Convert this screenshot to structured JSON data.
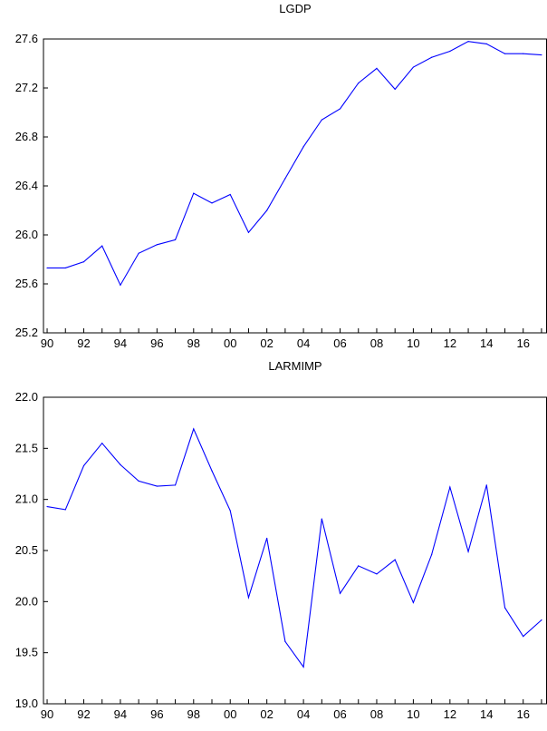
{
  "chart_data": [
    {
      "type": "line",
      "title": "LGDP",
      "xlabel": "",
      "ylabel": "",
      "color": "#0000ff",
      "grid": false,
      "x": [
        1990,
        1991,
        1992,
        1993,
        1994,
        1995,
        1996,
        1997,
        1998,
        1999,
        2000,
        2001,
        2002,
        2003,
        2004,
        2005,
        2006,
        2007,
        2008,
        2009,
        2010,
        2011,
        2012,
        2013,
        2014,
        2015,
        2016,
        2017
      ],
      "values": [
        25.73,
        25.73,
        25.78,
        25.91,
        25.59,
        25.85,
        25.92,
        25.96,
        26.34,
        26.26,
        26.33,
        26.02,
        26.2,
        26.46,
        26.72,
        26.94,
        27.03,
        27.24,
        27.36,
        27.19,
        27.37,
        27.45,
        27.5,
        27.58,
        27.56,
        27.48,
        27.48,
        27.47
      ],
      "xlim": [
        1989.8,
        2017.3
      ],
      "ylim": [
        25.2,
        27.6
      ],
      "yticks": [
        25.2,
        25.6,
        26.0,
        26.4,
        26.8,
        27.2,
        27.6
      ],
      "ytick_labels": [
        "25.2",
        "25.6",
        "26.0",
        "26.4",
        "26.8",
        "27.2",
        "27.6"
      ],
      "xtick_years": [
        1990,
        1992,
        1994,
        1996,
        1998,
        2000,
        2002,
        2004,
        2006,
        2008,
        2010,
        2012,
        2014,
        2016
      ],
      "xtick_labels": [
        "90",
        "92",
        "94",
        "96",
        "98",
        "00",
        "02",
        "04",
        "06",
        "08",
        "10",
        "12",
        "14",
        "16"
      ]
    },
    {
      "type": "line",
      "title": "LARMIMP",
      "xlabel": "",
      "ylabel": "",
      "color": "#0000ff",
      "grid": false,
      "x": [
        1990,
        1991,
        1992,
        1993,
        1994,
        1995,
        1996,
        1997,
        1998,
        1999,
        2000,
        2001,
        2002,
        2003,
        2004,
        2005,
        2006,
        2007,
        2008,
        2009,
        2010,
        2011,
        2012,
        2013,
        2014,
        2015,
        2016,
        2017
      ],
      "values": [
        20.93,
        20.9,
        21.33,
        21.55,
        21.34,
        21.18,
        21.13,
        21.14,
        21.69,
        21.28,
        20.89,
        20.04,
        20.62,
        19.61,
        19.36,
        20.81,
        20.08,
        20.35,
        20.27,
        20.41,
        19.99,
        20.46,
        21.12,
        20.49,
        21.14,
        19.94,
        19.66,
        19.82
      ],
      "xlim": [
        1989.8,
        2017.3
      ],
      "ylim": [
        19.0,
        22.0
      ],
      "yticks": [
        19.0,
        19.5,
        20.0,
        20.5,
        21.0,
        21.5,
        22.0
      ],
      "ytick_labels": [
        "19.0",
        "19.5",
        "20.0",
        "20.5",
        "21.0",
        "21.5",
        "22.0"
      ],
      "xtick_years": [
        1990,
        1992,
        1994,
        1996,
        1998,
        2000,
        2002,
        2004,
        2006,
        2008,
        2010,
        2012,
        2014,
        2016
      ],
      "xtick_labels": [
        "90",
        "92",
        "94",
        "96",
        "98",
        "00",
        "02",
        "04",
        "06",
        "08",
        "10",
        "12",
        "14",
        "16"
      ]
    }
  ]
}
